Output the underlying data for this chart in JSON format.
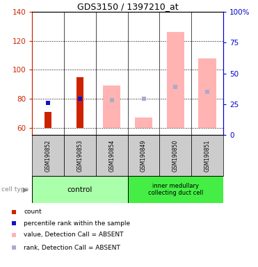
{
  "title": "GDS3150 / 1397210_at",
  "samples": [
    "GSM190852",
    "GSM190853",
    "GSM190854",
    "GSM190849",
    "GSM190850",
    "GSM190851"
  ],
  "ylim_left": [
    55,
    140
  ],
  "ylim_right": [
    0,
    100
  ],
  "yticks_left": [
    60,
    80,
    100,
    120,
    140
  ],
  "yticks_right": [
    0,
    25,
    50,
    75,
    100
  ],
  "ytick_labels_right": [
    "0",
    "25",
    "50",
    "75",
    "100%"
  ],
  "red_bars_values": [
    71,
    95,
    null,
    null,
    null,
    null
  ],
  "blue_sq_values": [
    77,
    80,
    null,
    null,
    null,
    null
  ],
  "pink_bars_values": [
    null,
    null,
    89,
    67,
    126,
    108
  ],
  "lav_sq_values": [
    null,
    null,
    79,
    80,
    88,
    85
  ],
  "bar_base": 60,
  "colors": {
    "red_bar": "#cc2200",
    "blue_sq": "#1111cc",
    "pink_bar": "#ffb3b3",
    "lav_sq": "#aaaacc",
    "left_axis": "#cc2200",
    "right_axis": "#0000cc",
    "sample_bg": "#cccccc",
    "control_bg": "#aaffaa",
    "inner_bg": "#44ee44",
    "bg": "#ffffff"
  },
  "legend_labels": [
    "count",
    "percentile rank within the sample",
    "value, Detection Call = ABSENT",
    "rank, Detection Call = ABSENT"
  ],
  "legend_colors": [
    "#cc2200",
    "#1111cc",
    "#ffb3b3",
    "#aaaacc"
  ]
}
